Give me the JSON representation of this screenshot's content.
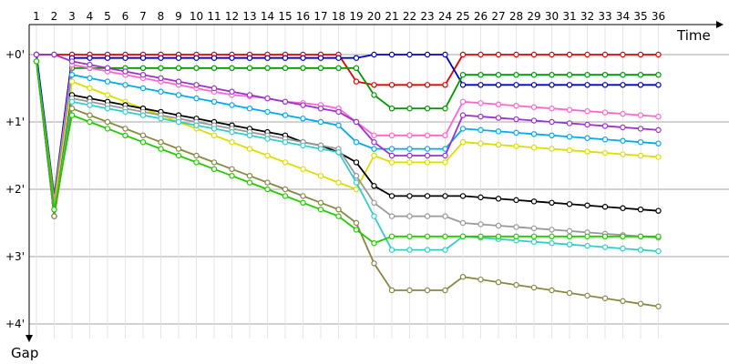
{
  "chart_data": {
    "type": "line",
    "title": "",
    "xlabel": "Time",
    "ylabel": "Gap",
    "x": [
      1,
      2,
      3,
      4,
      5,
      6,
      7,
      8,
      9,
      10,
      11,
      12,
      13,
      14,
      15,
      16,
      17,
      18,
      19,
      20,
      21,
      22,
      23,
      24,
      25,
      26,
      27,
      28,
      29,
      30,
      31,
      32,
      33,
      34,
      35,
      36
    ],
    "x_tick_labels": [
      "1",
      "2",
      "3",
      "4",
      "5",
      "6",
      "7",
      "8",
      "9",
      "10",
      "11",
      "12",
      "13",
      "14",
      "15",
      "16",
      "17",
      "18",
      "19",
      "20",
      "21",
      "22",
      "23",
      "24",
      "25",
      "26",
      "27",
      "28",
      "29",
      "30",
      "31",
      "32",
      "33",
      "34",
      "35",
      "36"
    ],
    "y_tick_labels": [
      "+0'",
      "+1'",
      "+2'",
      "+3'",
      "+4'"
    ],
    "y_ticks": [
      0,
      1,
      2,
      3,
      4
    ],
    "ylim": [
      -0.4,
      4.3
    ],
    "y_inverted": true,
    "grid": true,
    "legend": "none",
    "series": [
      {
        "color": "#e00000",
        "values": [
          0.0,
          0.0,
          0.0,
          0.0,
          0.0,
          0.0,
          0.0,
          0.0,
          0.0,
          0.0,
          0.0,
          0.0,
          0.0,
          0.0,
          0.0,
          0.0,
          0.0,
          0.0,
          0.4,
          0.45,
          0.45,
          0.45,
          0.45,
          0.45,
          0.0,
          0.0,
          0.0,
          0.0,
          0.0,
          0.0,
          0.0,
          0.0,
          0.0,
          0.0,
          0.0,
          0.0
        ]
      },
      {
        "color": "#0000cc",
        "values": [
          0.0,
          2.1,
          0.05,
          0.05,
          0.05,
          0.05,
          0.05,
          0.05,
          0.05,
          0.05,
          0.05,
          0.05,
          0.05,
          0.05,
          0.05,
          0.05,
          0.05,
          0.05,
          0.05,
          0.0,
          0.0,
          0.0,
          0.0,
          0.0,
          0.45,
          0.45,
          0.45,
          0.45,
          0.45,
          0.45,
          0.45,
          0.45,
          0.45,
          0.45,
          0.45,
          0.45
        ]
      },
      {
        "color": "#009900",
        "values": [
          0.1,
          2.1,
          0.2,
          0.2,
          0.2,
          0.2,
          0.2,
          0.2,
          0.2,
          0.2,
          0.2,
          0.2,
          0.2,
          0.2,
          0.2,
          0.2,
          0.2,
          0.2,
          0.2,
          0.6,
          0.8,
          0.8,
          0.8,
          0.8,
          0.3,
          0.3,
          0.3,
          0.3,
          0.3,
          0.3,
          0.3,
          0.3,
          0.3,
          0.3,
          0.3,
          0.3
        ]
      },
      {
        "color": "#ff66cc",
        "values": [
          0.1,
          2.2,
          0.15,
          0.2,
          0.25,
          0.3,
          0.35,
          0.4,
          0.45,
          0.5,
          0.55,
          0.6,
          0.62,
          0.65,
          0.7,
          0.72,
          0.75,
          0.8,
          1.0,
          1.2,
          1.2,
          1.2,
          1.2,
          1.2,
          0.7,
          0.72,
          0.74,
          0.76,
          0.78,
          0.8,
          0.82,
          0.84,
          0.86,
          0.88,
          0.9,
          0.92
        ]
      },
      {
        "color": "#00aaee",
        "values": [
          0.1,
          2.3,
          0.3,
          0.35,
          0.4,
          0.45,
          0.5,
          0.55,
          0.6,
          0.65,
          0.7,
          0.75,
          0.8,
          0.85,
          0.9,
          0.95,
          1.0,
          1.05,
          1.3,
          1.4,
          1.4,
          1.4,
          1.4,
          1.4,
          1.1,
          1.12,
          1.14,
          1.16,
          1.18,
          1.2,
          1.22,
          1.24,
          1.26,
          1.28,
          1.3,
          1.32
        ]
      },
      {
        "color": "#dddd00",
        "values": [
          0.1,
          2.3,
          0.4,
          0.5,
          0.6,
          0.7,
          0.8,
          0.9,
          1.0,
          1.1,
          1.2,
          1.3,
          1.4,
          1.5,
          1.6,
          1.7,
          1.8,
          1.9,
          2.0,
          1.5,
          1.6,
          1.6,
          1.6,
          1.6,
          1.3,
          1.32,
          1.34,
          1.36,
          1.38,
          1.4,
          1.42,
          1.44,
          1.46,
          1.48,
          1.5,
          1.52
        ]
      },
      {
        "color": "#000000",
        "values": [
          0.1,
          2.4,
          0.6,
          0.65,
          0.7,
          0.75,
          0.8,
          0.85,
          0.9,
          0.95,
          1.0,
          1.05,
          1.1,
          1.15,
          1.2,
          1.3,
          1.35,
          1.45,
          1.6,
          1.95,
          2.1,
          2.1,
          2.1,
          2.1,
          2.1,
          2.12,
          2.14,
          2.16,
          2.18,
          2.2,
          2.22,
          2.24,
          2.26,
          2.28,
          2.3,
          2.32
        ]
      },
      {
        "color": "#999999",
        "values": [
          0.1,
          2.4,
          0.65,
          0.7,
          0.75,
          0.8,
          0.85,
          0.9,
          0.95,
          1.0,
          1.05,
          1.1,
          1.15,
          1.2,
          1.25,
          1.3,
          1.35,
          1.4,
          1.8,
          2.2,
          2.4,
          2.4,
          2.4,
          2.4,
          2.5,
          2.52,
          2.54,
          2.56,
          2.58,
          2.6,
          2.62,
          2.64,
          2.66,
          2.68,
          2.7,
          2.72
        ]
      },
      {
        "color": "#33cccc",
        "values": [
          0.1,
          2.4,
          0.7,
          0.75,
          0.8,
          0.85,
          0.9,
          0.95,
          1.0,
          1.05,
          1.1,
          1.15,
          1.2,
          1.25,
          1.3,
          1.35,
          1.4,
          1.45,
          1.9,
          2.4,
          2.9,
          2.9,
          2.9,
          2.9,
          2.7,
          2.72,
          2.74,
          2.76,
          2.78,
          2.8,
          2.82,
          2.84,
          2.86,
          2.88,
          2.9,
          2.92
        ]
      },
      {
        "color": "#888844",
        "values": [
          0.1,
          2.4,
          0.8,
          0.9,
          1.0,
          1.1,
          1.2,
          1.3,
          1.4,
          1.5,
          1.6,
          1.7,
          1.8,
          1.9,
          2.0,
          2.1,
          2.2,
          2.3,
          2.5,
          3.1,
          3.5,
          3.5,
          3.5,
          3.5,
          3.3,
          3.34,
          3.38,
          3.42,
          3.46,
          3.5,
          3.54,
          3.58,
          3.62,
          3.66,
          3.7,
          3.74
        ]
      },
      {
        "color": "#22cc00",
        "values": [
          0.1,
          2.3,
          0.9,
          1.0,
          1.1,
          1.2,
          1.3,
          1.4,
          1.5,
          1.6,
          1.7,
          1.8,
          1.9,
          2.0,
          2.1,
          2.2,
          2.3,
          2.4,
          2.6,
          2.8,
          2.7,
          2.7,
          2.7,
          2.7,
          2.7,
          2.7,
          2.7,
          2.7,
          2.7,
          2.7,
          2.7,
          2.7,
          2.7,
          2.7,
          2.7,
          2.7
        ]
      },
      {
        "color": "#9933cc",
        "values": [
          0.0,
          0.0,
          0.1,
          0.15,
          0.2,
          0.25,
          0.3,
          0.35,
          0.4,
          0.45,
          0.5,
          0.55,
          0.6,
          0.65,
          0.7,
          0.75,
          0.8,
          0.85,
          1.0,
          1.3,
          1.5,
          1.5,
          1.5,
          1.5,
          0.9,
          0.92,
          0.94,
          0.96,
          0.98,
          1.0,
          1.02,
          1.04,
          1.06,
          1.08,
          1.1,
          1.12
        ]
      }
    ]
  }
}
